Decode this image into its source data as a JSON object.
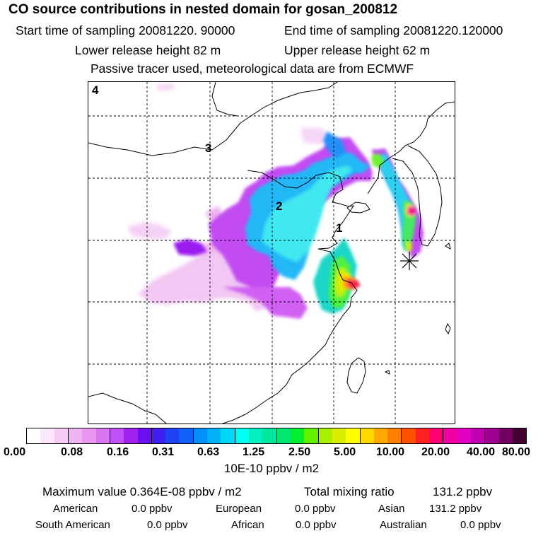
{
  "title": "CO  source contributions in nested domain for gosan_200812",
  "header": {
    "start_label": "Start time of sampling 20081220. 90000",
    "end_label": "End time of sampling 20081220.120000",
    "lower_label": "Lower release height   82 m",
    "upper_label": "Upper release height   62 m",
    "tracer_label": "Passive tracer used, meteorological data are from ECMWF"
  },
  "map": {
    "panel_label": "4",
    "point_labels": [
      "3",
      "2",
      "1"
    ],
    "receptor": "gosan"
  },
  "colorbar": {
    "ticks": [
      "0.00",
      "0.08",
      "0.16",
      "0.31",
      "0.63",
      "1.25",
      "2.50",
      "5.00",
      "10.00",
      "20.00",
      "40.00",
      "80.00"
    ],
    "unit": "10E-10 ppbv / m2",
    "colors": [
      "#ffffff",
      "#fbe6fb",
      "#f6ccf6",
      "#f0b4f0",
      "#e898f0",
      "#d878f0",
      "#c050f8",
      "#a020f0",
      "#6a0ff0",
      "#4020f0",
      "#2040f4",
      "#1060f8",
      "#0090f8",
      "#00b0f8",
      "#00d8f8",
      "#00fff0",
      "#00f0c0",
      "#00e8a0",
      "#00e870",
      "#00f030",
      "#60f000",
      "#a8f000",
      "#d8f000",
      "#ffff00",
      "#ffd800",
      "#ffa800",
      "#ff8000",
      "#ff5000",
      "#ff2020",
      "#ff0070",
      "#f000a0",
      "#e000c0",
      "#c000b0",
      "#a00090",
      "#700060",
      "#400030"
    ]
  },
  "stats": {
    "max_label": "Maximum value  0.364E-08 ppbv / m2",
    "total_label": "Total mixing ratio",
    "total_value": "131.2 ppbv",
    "regions": [
      {
        "name": "American",
        "value": "0.0 ppbv"
      },
      {
        "name": "European",
        "value": "0.0 ppbv"
      },
      {
        "name": "Asian",
        "value": "131.2 ppbv"
      },
      {
        "name": "South American",
        "value": "0.0 ppbv"
      },
      {
        "name": "African",
        "value": "0.0 ppbv"
      },
      {
        "name": "Australian",
        "value": "0.0 ppbv"
      }
    ]
  }
}
